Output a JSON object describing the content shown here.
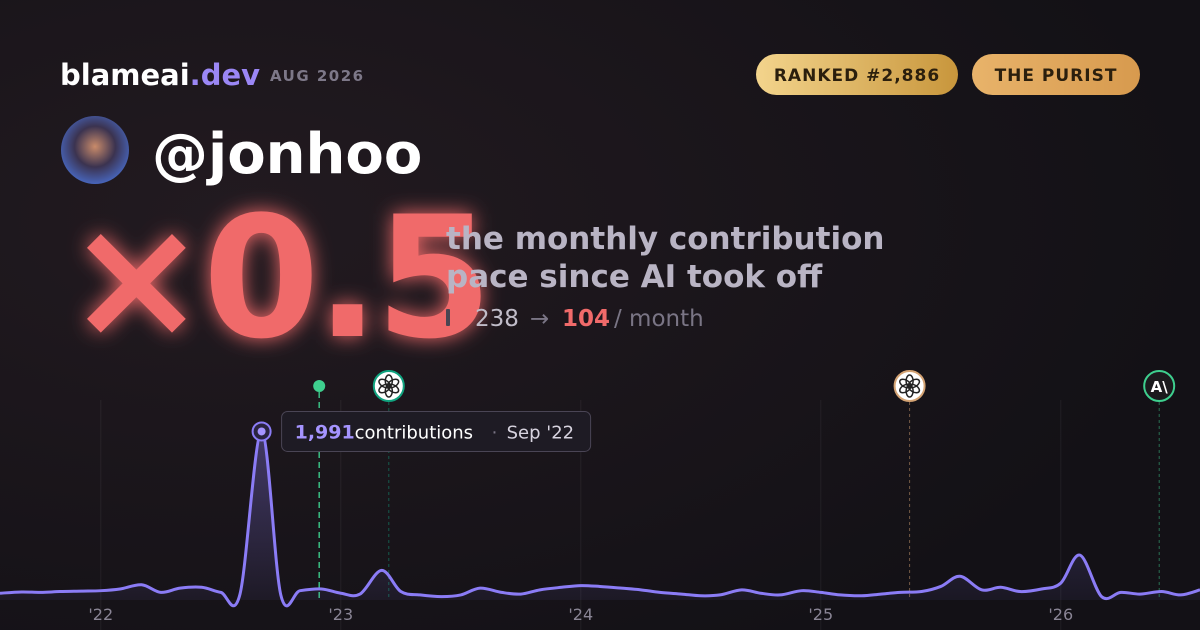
{
  "brand": {
    "name": "blameai",
    "tld": ".dev",
    "date": "AUG 2026"
  },
  "badges": [
    "RANKED #2,886",
    "THE PURIST"
  ],
  "user": {
    "handle": "@jonhoo"
  },
  "headline": {
    "multiplier": "×0.5",
    "description": [
      "the monthly contribution",
      "pace since AI took off"
    ],
    "before": 238,
    "arrow": "→",
    "after": 104,
    "unit": "/ month"
  },
  "chart_data": {
    "type": "line",
    "x": [
      2021.58,
      2021.67,
      2021.75,
      2021.83,
      2021.92,
      2022.0,
      2022.08,
      2022.17,
      2022.25,
      2022.33,
      2022.42,
      2022.5,
      2022.58,
      2022.67,
      2022.75,
      2022.83,
      2022.92,
      2023.0,
      2023.08,
      2023.17,
      2023.25,
      2023.33,
      2023.42,
      2023.5,
      2023.58,
      2023.67,
      2023.75,
      2023.83,
      2023.92,
      2024.0,
      2024.08,
      2024.17,
      2024.25,
      2024.33,
      2024.42,
      2024.5,
      2024.58,
      2024.67,
      2024.75,
      2024.83,
      2024.92,
      2025.0,
      2025.08,
      2025.17,
      2025.25,
      2025.33,
      2025.42,
      2025.5,
      2025.58,
      2025.67,
      2025.75,
      2025.83,
      2025.92,
      2026.0,
      2026.08,
      2026.17,
      2026.25,
      2026.33,
      2026.42,
      2026.5,
      2026.58
    ],
    "series": [
      {
        "color": "#8b7cf6",
        "values": [
          80,
          95,
          90,
          100,
          105,
          110,
          130,
          180,
          90,
          140,
          150,
          90,
          70,
          1991,
          60,
          110,
          130,
          80,
          70,
          350,
          100,
          60,
          40,
          60,
          140,
          90,
          70,
          120,
          150,
          170,
          160,
          140,
          120,
          90,
          70,
          50,
          60,
          120,
          80,
          60,
          110,
          90,
          60,
          50,
          70,
          90,
          100,
          160,
          280,
          120,
          150,
          100,
          130,
          200,
          530,
          40,
          90,
          70,
          100,
          60,
          120
        ]
      }
    ],
    "xlim": [
      2021.58,
      2026.58
    ],
    "ylim": [
      0,
      2150
    ],
    "xticks": [
      {
        "value": 2022,
        "label": "'22"
      },
      {
        "value": 2023,
        "label": "'23"
      },
      {
        "value": 2024,
        "label": "'24"
      },
      {
        "value": 2025,
        "label": "'25"
      },
      {
        "value": 2026,
        "label": "'26"
      }
    ],
    "grid": true,
    "tooltip": {
      "value_label": "1,991",
      "text": "contributions",
      "separator": "·",
      "date": "Sep '22"
    },
    "markers": [
      {
        "x": 2022.91,
        "color": "#3ecf8e",
        "style": "dot"
      },
      {
        "x": 2023.2,
        "color": "#10a37f",
        "style": "openai"
      },
      {
        "x": 2025.37,
        "color": "#d4a373",
        "style": "openai"
      },
      {
        "x": 2026.41,
        "color": "#3ecf8e",
        "style": "anthropic",
        "label": "A\\"
      }
    ]
  }
}
